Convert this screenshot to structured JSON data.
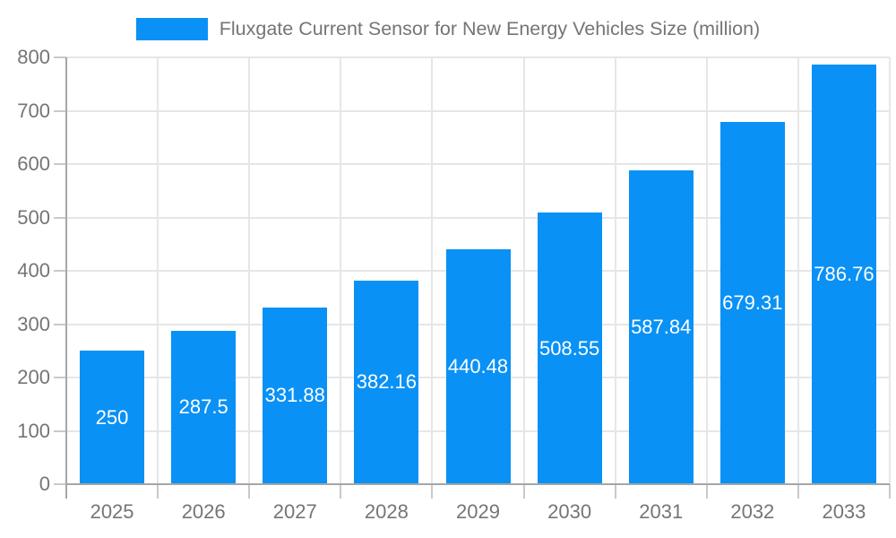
{
  "legend": {
    "label": "Fluxgate Current Sensor for New Energy Vehicles Size (million)"
  },
  "chart_data": {
    "type": "bar",
    "title": "Fluxgate Current Sensor for New Energy Vehicles Size (million)",
    "categories": [
      "2025",
      "2026",
      "2027",
      "2028",
      "2029",
      "2030",
      "2031",
      "2032",
      "2033"
    ],
    "values": [
      250,
      287.5,
      331.88,
      382.16,
      440.48,
      508.55,
      587.84,
      679.31,
      786.76
    ],
    "value_labels": [
      "250",
      "287.5",
      "331.88",
      "382.16",
      "440.48",
      "508.55",
      "587.84",
      "679.31",
      "786.76"
    ],
    "xlabel": "",
    "ylabel": "",
    "ylim": [
      0,
      800
    ],
    "yticks": [
      0,
      100,
      200,
      300,
      400,
      500,
      600,
      700,
      800
    ],
    "grid": true,
    "legend_position": "top",
    "colors": {
      "bar": "#0A91F5",
      "value_label": "#ffffff",
      "axis_text": "#757575",
      "grid": "#e6e6e6",
      "tick": "#c9c9c9",
      "axis_line": "#a6a6a6",
      "background": "#ffffff"
    }
  }
}
